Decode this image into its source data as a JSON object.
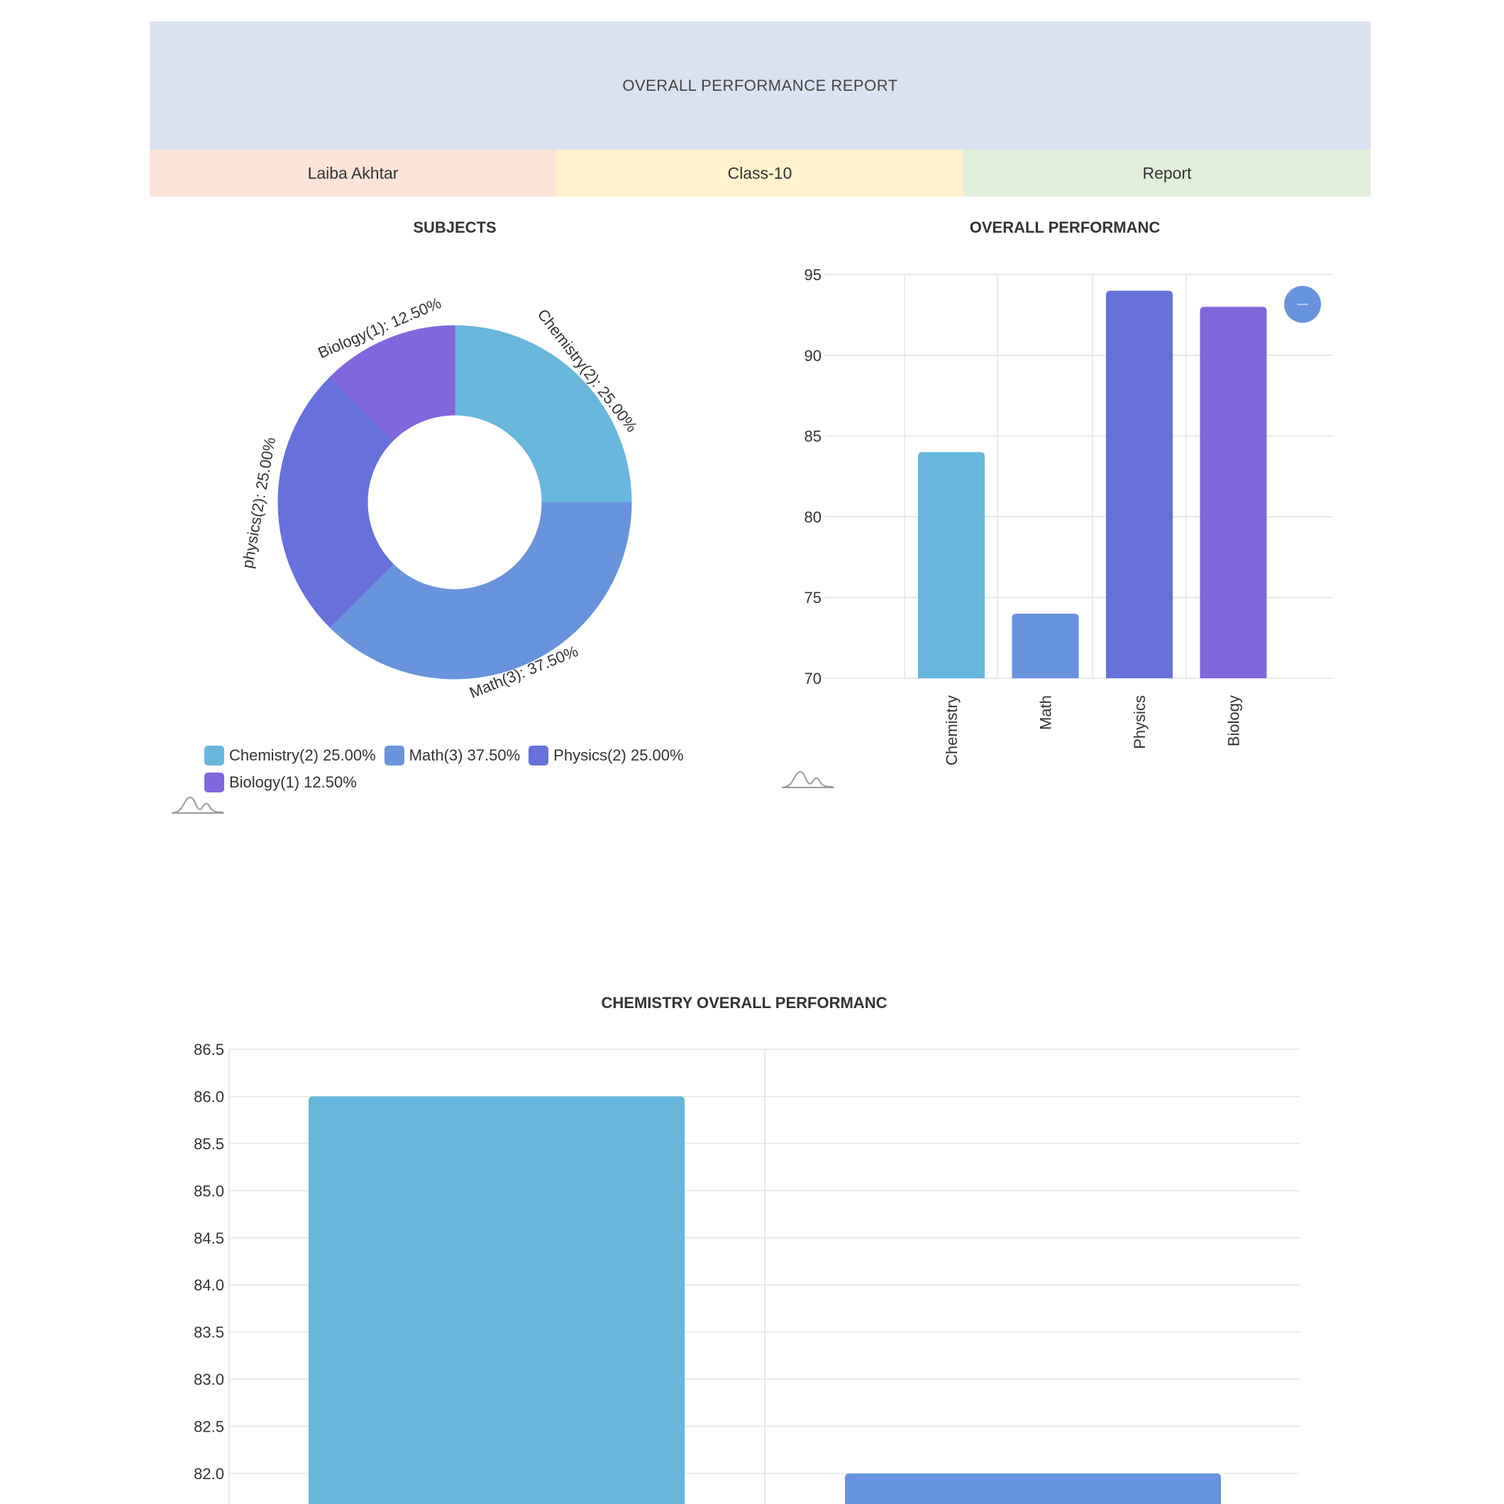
{
  "header": {
    "title": "OVERALL PERFORMANCE REPORT"
  },
  "info": {
    "student": "Laiba Akhtar",
    "class": "Class-10",
    "type": "Report"
  },
  "colors": {
    "chemistry": "#67b7dc",
    "math": "#6794dc",
    "physics": "#6771dc",
    "biology": "#8067dc",
    "header_bg": "#dae2f1",
    "student_bg": "#fce4d8",
    "class_bg": "#fff2cc",
    "report_bg": "#e2efda"
  },
  "chart_data": [
    {
      "type": "pie",
      "title": "SUBJECTS",
      "donut": true,
      "categories": [
        "Chemistry(2)",
        "Math(3)",
        "Physics(2)",
        "Biology(1)"
      ],
      "values": [
        2,
        3,
        2,
        1
      ],
      "percents": [
        "25.00%",
        "37.50%",
        "25.00%",
        "12.50%"
      ],
      "slice_labels": [
        "Chemistry(2): 25.00%",
        "Math(3): 37.50%",
        "physics(2): 25.00%",
        "Biology(1): 12.50%"
      ],
      "legend": [
        "Chemistry(2) 25.00%",
        "Math(3) 37.50%",
        "Physics(2) 25.00%",
        "Biology(1) 12.50%"
      ],
      "legend_placement": "bottom"
    },
    {
      "type": "bar",
      "title": "OVERALL PERFORMANC",
      "categories": [
        "Chemistry",
        "Math",
        "Physics",
        "Biology"
      ],
      "values": [
        84,
        74,
        94,
        93
      ],
      "ylim": [
        70,
        95
      ],
      "yticks": [
        "95",
        "90",
        "85",
        "80",
        "75",
        "70"
      ],
      "grid": true
    },
    {
      "type": "bar",
      "title": "CHEMISTRY OVERALL PERFORMANC",
      "values": [
        86.0,
        82.0
      ],
      "ylim": [
        82.0,
        86.5
      ],
      "yticks": [
        "86.5",
        "86.0",
        "85.5",
        "85.0",
        "84.5",
        "84.0",
        "83.5",
        "83.0",
        "82.5",
        "82.0"
      ],
      "grid": true
    }
  ]
}
